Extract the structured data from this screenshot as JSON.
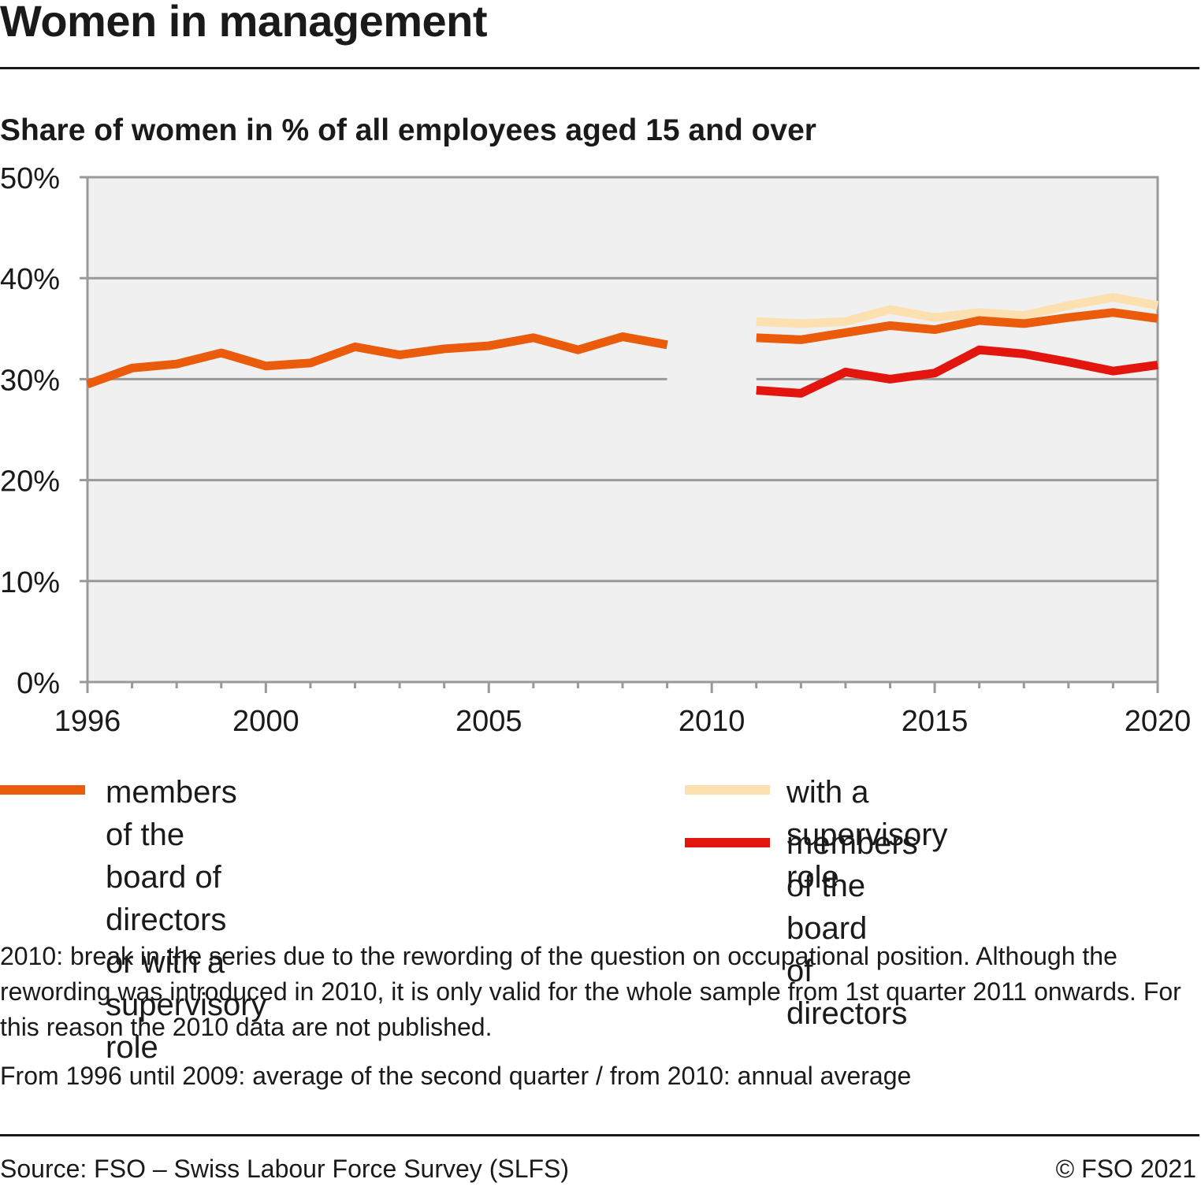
{
  "title": "Women in management",
  "subtitle": "Share of women in % of all employees aged 15 and over",
  "colors": {
    "plot_bg": "#f0f0f0",
    "grid": "#999999",
    "board_or_supervisory": "#ea5b0c",
    "supervisory": "#fde0b0",
    "board": "#e3150f"
  },
  "chart_data": {
    "type": "line",
    "xlim": [
      1996,
      2020
    ],
    "ylim": [
      0,
      50
    ],
    "x_ticks": [
      1996,
      2000,
      2005,
      2010,
      2015,
      2020
    ],
    "y_ticks": [
      0,
      10,
      20,
      30,
      40,
      50
    ],
    "y_tick_labels": [
      "0%",
      "10%",
      "20%",
      "30%",
      "40%",
      "50%"
    ],
    "grid": true,
    "legend_position": "bottom",
    "series": [
      {
        "name": "members of the board of directors or with a supervisory role",
        "color_key": "board_or_supervisory",
        "segments": [
          {
            "x": [
              1996,
              1997,
              1998,
              1999,
              2000,
              2001,
              2002,
              2003,
              2004,
              2005,
              2006,
              2007,
              2008,
              2009
            ],
            "y": [
              29.5,
              31.1,
              31.5,
              32.6,
              31.3,
              31.6,
              33.2,
              32.4,
              33.0,
              33.3,
              34.1,
              32.9,
              34.2,
              33.4
            ]
          },
          {
            "x": [
              2011,
              2012,
              2013,
              2014,
              2015,
              2016,
              2017,
              2018,
              2019,
              2020
            ],
            "y": [
              34.1,
              33.9,
              34.6,
              35.3,
              34.9,
              35.8,
              35.5,
              36.1,
              36.6,
              36.0
            ]
          }
        ]
      },
      {
        "name": "with a supervisory role",
        "color_key": "supervisory",
        "segments": [
          {
            "x": [
              2011,
              2012,
              2013,
              2014,
              2015,
              2016,
              2017,
              2018,
              2019,
              2020
            ],
            "y": [
              35.7,
              35.5,
              35.7,
              36.9,
              36.1,
              36.6,
              36.3,
              37.3,
              38.1,
              37.3
            ]
          }
        ]
      },
      {
        "name": "members of the board of directors",
        "color_key": "board",
        "segments": [
          {
            "x": [
              2011,
              2012,
              2013,
              2014,
              2015,
              2016,
              2017,
              2018,
              2019,
              2020
            ],
            "y": [
              28.9,
              28.6,
              30.7,
              30.0,
              30.6,
              32.9,
              32.5,
              31.7,
              30.8,
              31.4
            ]
          }
        ]
      }
    ]
  },
  "legend": [
    {
      "line1": "members of the board of directors",
      "line2": "or with a supervisory role"
    },
    {
      "line1": "with a supervisory role",
      "line2": ""
    },
    {
      "line1": "members of the board",
      "line2": "of directors"
    }
  ],
  "notes": [
    "2010: break in the series due to the rewording of the question on occupational position. Although the rewording was introduced in 2010, it is only valid for the whole sample from 1st quarter 2011 onwards. For this reason the 2010 data are not published.",
    "From 1996 until 2009: average of the second quarter / from 2010: annual average"
  ],
  "source": "Source: FSO – Swiss Labour Force Survey (SLFS)",
  "copyright": "© FSO 2021"
}
